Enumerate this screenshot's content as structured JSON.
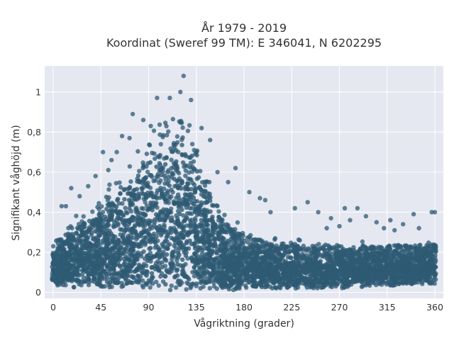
{
  "chart_data": {
    "type": "scatter",
    "title": "År 1979 - 2019",
    "subtitle": "Koordinat (Sweref 99 TM): E 346041, N 6202295",
    "xlabel": "Vågriktning (grader)",
    "ylabel": "Signifikant våghöjd (m)",
    "xlim": [
      -8,
      368
    ],
    "ylim": [
      -0.03,
      1.13
    ],
    "x_ticks": [
      0,
      45,
      90,
      135,
      180,
      225,
      270,
      315,
      360
    ],
    "x_tick_labels": [
      "0",
      "45",
      "90",
      "135",
      "180",
      "225",
      "270",
      "315",
      "360"
    ],
    "y_ticks": [
      0,
      0.2,
      0.4,
      0.6,
      0.8,
      1
    ],
    "y_tick_labels": [
      "0",
      "0,2",
      "0,4",
      "0,6",
      "0,8",
      "1"
    ],
    "grid": true,
    "legend": "none",
    "colors": {
      "marker": "#2e5a73",
      "plot_background": "#e5e8f1",
      "grid": "#ffffff"
    },
    "envelope": {
      "x": [
        0,
        10,
        20,
        30,
        45,
        60,
        75,
        90,
        100,
        110,
        120,
        125,
        130,
        140,
        150,
        160,
        170,
        180,
        195,
        210,
        225,
        240,
        260,
        280,
        300,
        320,
        340,
        360
      ],
      "y_max": [
        0.26,
        0.33,
        0.38,
        0.42,
        0.5,
        0.6,
        0.7,
        0.82,
        0.88,
        0.93,
        0.95,
        0.94,
        0.88,
        0.72,
        0.56,
        0.44,
        0.37,
        0.33,
        0.3,
        0.28,
        0.27,
        0.27,
        0.26,
        0.26,
        0.26,
        0.26,
        0.26,
        0.26
      ],
      "y_min": [
        0.03,
        0.03,
        0.02,
        0.02,
        0.01,
        0.01,
        0.01,
        0.01,
        0.01,
        0.01,
        0.01,
        0.01,
        0.01,
        0.01,
        0.01,
        0.01,
        0.01,
        0.02,
        0.02,
        0.02,
        0.02,
        0.02,
        0.02,
        0.02,
        0.03,
        0.03,
        0.04,
        0.04
      ]
    },
    "outliers": [
      {
        "x": 123,
        "y": 1.08
      },
      {
        "x": 120,
        "y": 1.0
      },
      {
        "x": 110,
        "y": 0.97
      },
      {
        "x": 98,
        "y": 0.97
      },
      {
        "x": 130,
        "y": 0.96
      },
      {
        "x": 75,
        "y": 0.89
      },
      {
        "x": 72,
        "y": 0.77
      },
      {
        "x": 92,
        "y": 0.83
      },
      {
        "x": 60,
        "y": 0.7
      },
      {
        "x": 52,
        "y": 0.61
      },
      {
        "x": 140,
        "y": 0.82
      },
      {
        "x": 148,
        "y": 0.76
      },
      {
        "x": 155,
        "y": 0.6
      },
      {
        "x": 172,
        "y": 0.62
      },
      {
        "x": 165,
        "y": 0.55
      },
      {
        "x": 185,
        "y": 0.5
      },
      {
        "x": 195,
        "y": 0.47
      },
      {
        "x": 205,
        "y": 0.4
      },
      {
        "x": 200,
        "y": 0.46
      },
      {
        "x": 240,
        "y": 0.45
      },
      {
        "x": 228,
        "y": 0.42
      },
      {
        "x": 250,
        "y": 0.4
      },
      {
        "x": 262,
        "y": 0.37
      },
      {
        "x": 275,
        "y": 0.42
      },
      {
        "x": 280,
        "y": 0.36
      },
      {
        "x": 287,
        "y": 0.42
      },
      {
        "x": 295,
        "y": 0.38
      },
      {
        "x": 305,
        "y": 0.35
      },
      {
        "x": 318,
        "y": 0.36
      },
      {
        "x": 330,
        "y": 0.34
      },
      {
        "x": 340,
        "y": 0.39
      },
      {
        "x": 345,
        "y": 0.32
      },
      {
        "x": 357,
        "y": 0.4
      },
      {
        "x": 360,
        "y": 0.4
      },
      {
        "x": 8,
        "y": 0.43
      },
      {
        "x": 12,
        "y": 0.43
      },
      {
        "x": 17,
        "y": 0.52
      },
      {
        "x": 25,
        "y": 0.48
      },
      {
        "x": 33,
        "y": 0.53
      },
      {
        "x": 40,
        "y": 0.58
      },
      {
        "x": 47,
        "y": 0.7
      },
      {
        "x": 55,
        "y": 0.66
      },
      {
        "x": 65,
        "y": 0.78
      },
      {
        "x": 85,
        "y": 0.86
      },
      {
        "x": 258,
        "y": 0.32
      },
      {
        "x": 270,
        "y": 0.33
      },
      {
        "x": 312,
        "y": 0.32
      },
      {
        "x": 322,
        "y": 0.31
      }
    ]
  }
}
